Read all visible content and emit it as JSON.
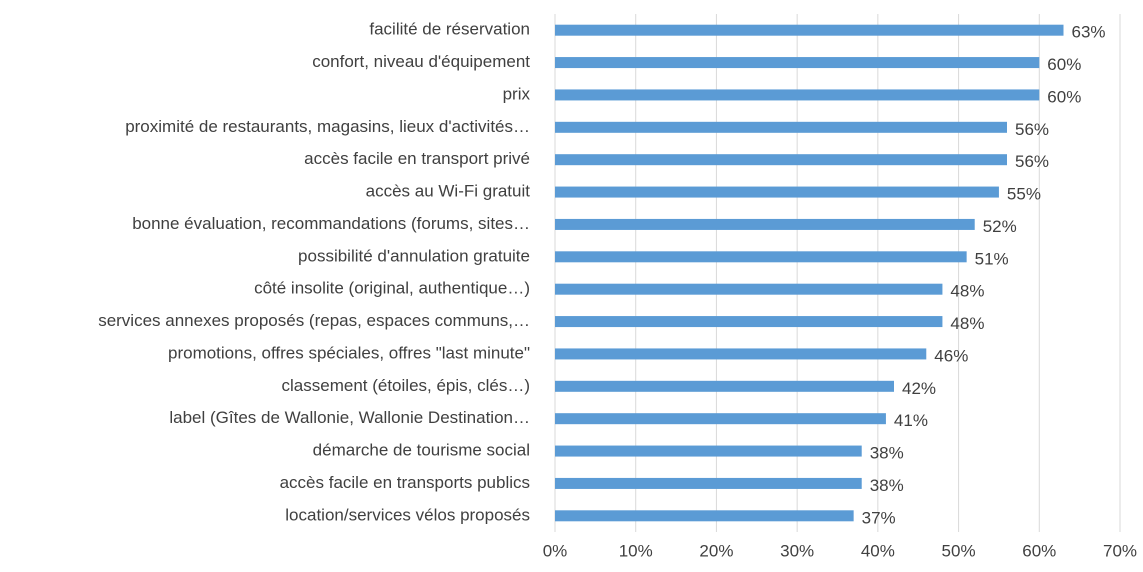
{
  "chart_data": {
    "type": "hbar",
    "categories": [
      "facilité de réservation",
      "confort, niveau d'équipement",
      "prix",
      "proximité de restaurants, magasins, lieux d'activités…",
      "accès facile en transport privé",
      "accès au Wi-Fi gratuit",
      "bonne évaluation, recommandations (forums, sites…",
      "possibilité d'annulation gratuite",
      "côté insolite (original, authentique…)",
      "services annexes proposés (repas, espaces communs,…",
      "promotions, offres spéciales, offres \"last minute\"",
      "classement (étoiles, épis, clés…)",
      "label (Gîtes de Wallonie, Wallonie Destination…",
      "démarche de tourisme social",
      "accès facile en transports publics",
      "location/services vélos proposés"
    ],
    "values": [
      63,
      60,
      60,
      56,
      56,
      55,
      52,
      51,
      48,
      48,
      46,
      42,
      41,
      38,
      38,
      37
    ],
    "value_labels": [
      "63%",
      "60%",
      "60%",
      "56%",
      "56%",
      "55%",
      "52%",
      "51%",
      "48%",
      "48%",
      "46%",
      "42%",
      "41%",
      "38%",
      "38%",
      "37%"
    ],
    "color": "#5b9bd5",
    "xlim": [
      0,
      70
    ],
    "xticks": [
      {
        "value": 0,
        "label": "0%"
      },
      {
        "value": 10,
        "label": "10%"
      },
      {
        "value": 20,
        "label": "20%"
      },
      {
        "value": 30,
        "label": "30%"
      },
      {
        "value": 40,
        "label": "40%"
      },
      {
        "value": 50,
        "label": "50%"
      },
      {
        "value": 60,
        "label": "60%"
      },
      {
        "value": 70,
        "label": "70%"
      }
    ],
    "grid": true
  }
}
